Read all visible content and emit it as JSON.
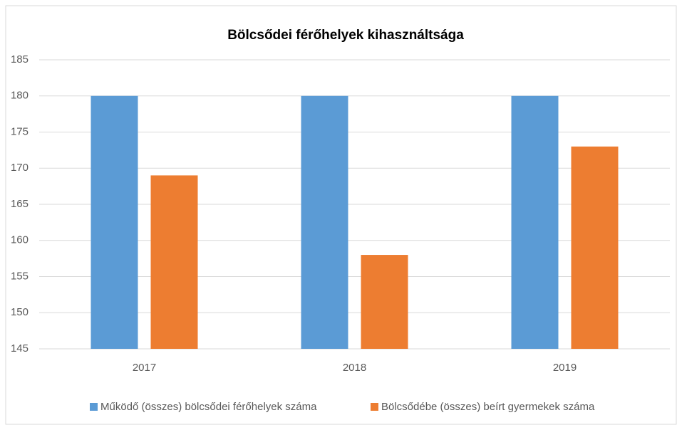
{
  "chart_data": {
    "type": "bar",
    "title": "Bölcsődei férőhelyek kihasználtsága",
    "categories": [
      "2017",
      "2018",
      "2019"
    ],
    "series": [
      {
        "name": "Működő (összes) bölcsődei férőhelyek száma",
        "color": "#5b9bd5",
        "values": [
          180,
          180,
          180
        ]
      },
      {
        "name": "Bölcsődébe (összes) beírt gyermekek száma",
        "color": "#ed7d31",
        "values": [
          169,
          158,
          173
        ]
      }
    ],
    "ylim": [
      145,
      185
    ],
    "yticks": [
      145,
      150,
      155,
      160,
      165,
      170,
      175,
      180,
      185
    ],
    "grid": true,
    "legend": "bottom"
  }
}
